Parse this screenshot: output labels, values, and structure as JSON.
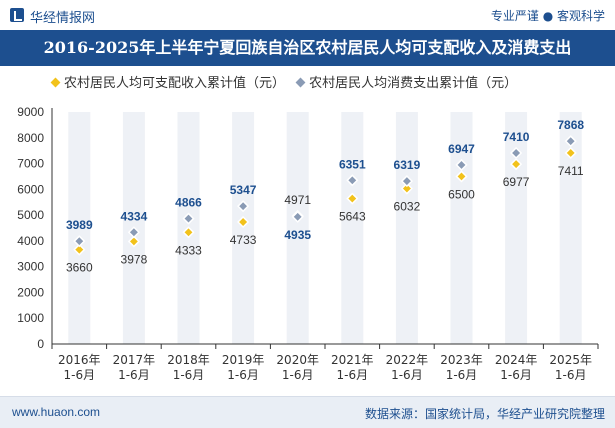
{
  "header": {
    "brand": "华经情报网",
    "slogan": "专业严谨 ● 客观科学"
  },
  "colors": {
    "accent": "#1d4f8f",
    "income_series": "#f2c21b",
    "consumption_series": "#8a9bb5",
    "column_band": "#eef1f6"
  },
  "chart_data": {
    "type": "scatter",
    "title": "2016-2025年上半年宁夏回族自治区农村居民人均可支配收入及消费支出",
    "categories": [
      "2016年\n1-6月",
      "2017年\n1-6月",
      "2018年\n1-6月",
      "2019年\n1-6月",
      "2020年\n1-6月",
      "2021年\n1-6月",
      "2022年\n1-6月",
      "2023年\n1-6月",
      "2024年\n1-6月",
      "2025年\n1-6月"
    ],
    "series": [
      {
        "name": "农村居民人均可支配收入累计值（元）",
        "values": [
          3660,
          3978,
          4333,
          4733,
          4971,
          5643,
          6032,
          6500,
          6977,
          7411
        ]
      },
      {
        "name": "农村居民人均消费支出累计值（元）",
        "values": [
          3989,
          4334,
          4866,
          5347,
          4935,
          6351,
          6319,
          6947,
          7410,
          7868
        ]
      }
    ],
    "yticks": [
      0,
      1000,
      2000,
      3000,
      4000,
      5000,
      6000,
      7000,
      8000,
      9000
    ],
    "ylim": [
      0,
      9000
    ],
    "xlabel": "",
    "ylabel": "",
    "legend_position": "top",
    "grid": false
  },
  "footer": {
    "website": "www.huaon.com",
    "source": "数据来源：国家统计局，华经产业研究院整理"
  }
}
